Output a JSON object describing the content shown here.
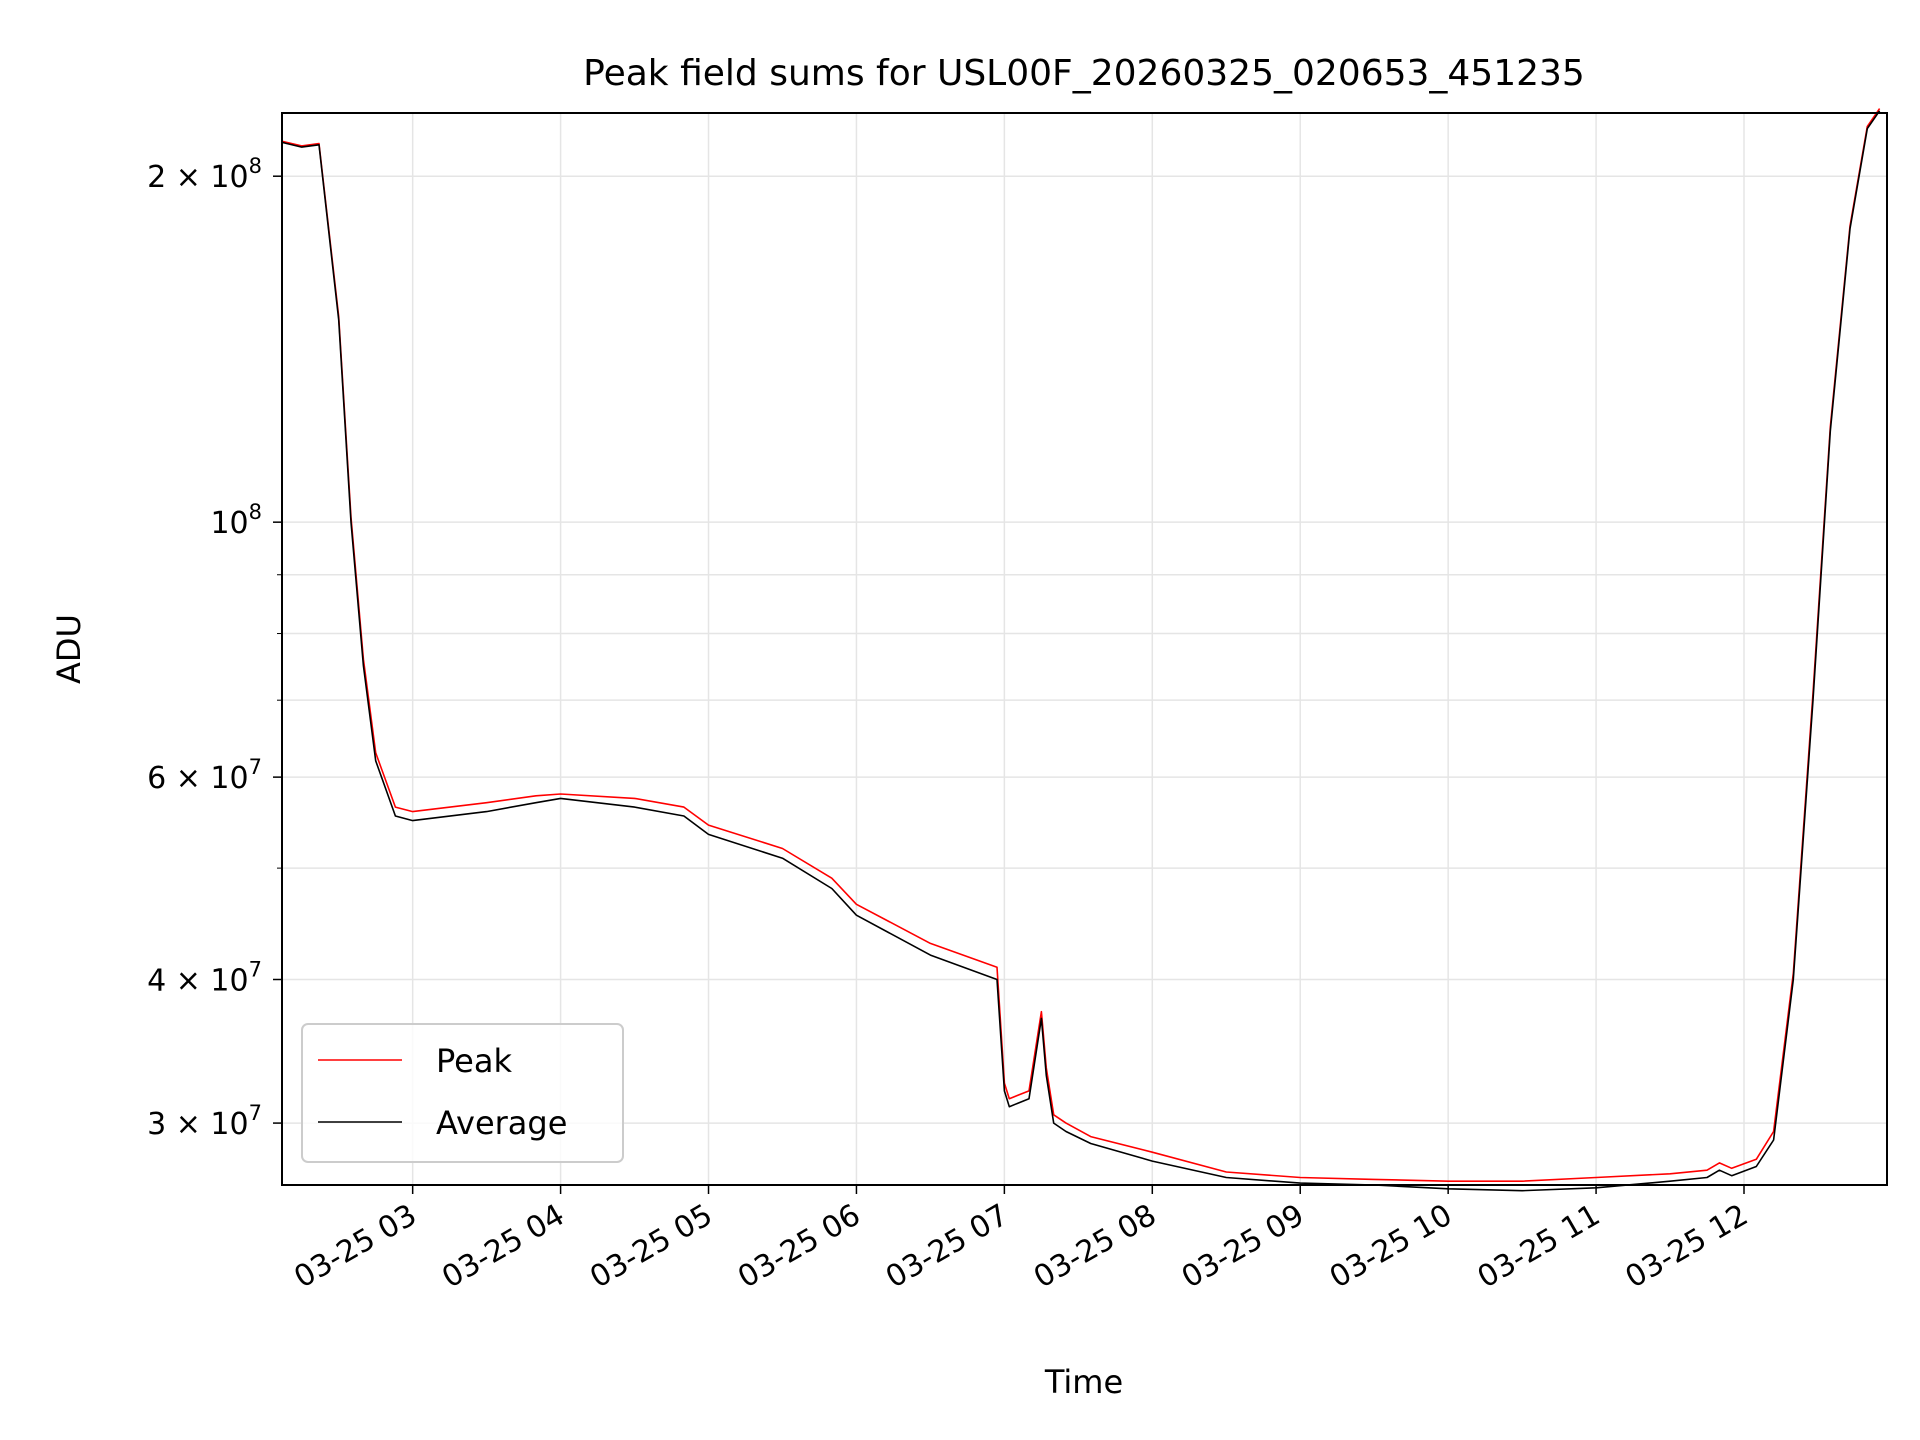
{
  "chart_data": {
    "type": "line",
    "title": "Peak field sums for USL00F_20260325_020653_451235",
    "xlabel": "Time",
    "ylabel": "ADU",
    "yscale": "log",
    "grid": true,
    "legend_placement": "lower-left",
    "xlim": [
      "2026-03-25 02:07",
      "2026-03-25 12:58"
    ],
    "ylim": [
      26500000,
      227000000
    ],
    "x_ticks": [
      "03-25 03",
      "03-25 04",
      "03-25 05",
      "03-25 06",
      "03-25 07",
      "03-25 08",
      "03-25 09",
      "03-25 10",
      "03-25 11",
      "03-25 12"
    ],
    "y_ticks": [
      {
        "value": 30000000,
        "label_base": "3 × 10",
        "label_exp": "7"
      },
      {
        "value": 40000000,
        "label_base": "4 × 10",
        "label_exp": "7"
      },
      {
        "value": 60000000,
        "label_base": "6 × 10",
        "label_exp": "7"
      },
      {
        "value": 100000000,
        "label_base": "10",
        "label_exp": "8"
      },
      {
        "value": 200000000,
        "label_base": "2 × 10",
        "label_exp": "8"
      }
    ],
    "series": [
      {
        "name": "Average",
        "color": "#000000",
        "x": [
          "2026-03-25 02:07",
          "2026-03-25 02:15",
          "2026-03-25 02:22",
          "2026-03-25 02:30",
          "2026-03-25 02:35",
          "2026-03-25 02:40",
          "2026-03-25 02:45",
          "2026-03-25 02:53",
          "2026-03-25 03:00",
          "2026-03-25 03:30",
          "2026-03-25 03:50",
          "2026-03-25 04:00",
          "2026-03-25 04:30",
          "2026-03-25 04:50",
          "2026-03-25 05:00",
          "2026-03-25 05:30",
          "2026-03-25 05:50",
          "2026-03-25 06:00",
          "2026-03-25 06:30",
          "2026-03-25 06:57",
          "2026-03-25 07:00",
          "2026-03-25 07:02",
          "2026-03-25 07:10",
          "2026-03-25 07:15",
          "2026-03-25 07:17",
          "2026-03-25 07:20",
          "2026-03-25 07:25",
          "2026-03-25 07:35",
          "2026-03-25 08:00",
          "2026-03-25 08:30",
          "2026-03-25 09:00",
          "2026-03-25 09:30",
          "2026-03-25 10:00",
          "2026-03-25 10:30",
          "2026-03-25 11:00",
          "2026-03-25 11:30",
          "2026-03-25 11:45",
          "2026-03-25 11:50",
          "2026-03-25 11:55",
          "2026-03-25 12:05",
          "2026-03-25 12:12",
          "2026-03-25 12:20",
          "2026-03-25 12:28",
          "2026-03-25 12:35",
          "2026-03-25 12:43",
          "2026-03-25 12:50",
          "2026-03-25 12:55"
        ],
        "values": [
          214000000,
          212000000,
          213000000,
          150000000,
          100000000,
          75000000,
          62000000,
          55500000,
          55000000,
          56000000,
          57000000,
          57500000,
          56500000,
          55500000,
          53500000,
          51000000,
          48000000,
          45500000,
          42000000,
          40000000,
          32000000,
          31000000,
          31500000,
          37000000,
          33000000,
          30000000,
          29500000,
          28800000,
          27800000,
          26900000,
          26600000,
          26500000,
          26300000,
          26200000,
          26350000,
          26700000,
          26900000,
          27300000,
          27000000,
          27500000,
          29000000,
          40000000,
          70000000,
          120000000,
          180000000,
          220000000,
          228000000
        ]
      },
      {
        "name": "Peak",
        "color": "#ff0000",
        "x": [
          "2026-03-25 02:07",
          "2026-03-25 02:15",
          "2026-03-25 02:22",
          "2026-03-25 02:30",
          "2026-03-25 02:35",
          "2026-03-25 02:40",
          "2026-03-25 02:45",
          "2026-03-25 02:53",
          "2026-03-25 03:00",
          "2026-03-25 03:30",
          "2026-03-25 03:50",
          "2026-03-25 04:00",
          "2026-03-25 04:30",
          "2026-03-25 04:50",
          "2026-03-25 05:00",
          "2026-03-25 05:30",
          "2026-03-25 05:50",
          "2026-03-25 06:00",
          "2026-03-25 06:30",
          "2026-03-25 06:57",
          "2026-03-25 07:00",
          "2026-03-25 07:02",
          "2026-03-25 07:10",
          "2026-03-25 07:15",
          "2026-03-25 07:17",
          "2026-03-25 07:20",
          "2026-03-25 07:25",
          "2026-03-25 07:35",
          "2026-03-25 08:00",
          "2026-03-25 08:30",
          "2026-03-25 09:00",
          "2026-03-25 09:30",
          "2026-03-25 10:00",
          "2026-03-25 10:30",
          "2026-03-25 11:00",
          "2026-03-25 11:30",
          "2026-03-25 11:45",
          "2026-03-25 11:50",
          "2026-03-25 11:55",
          "2026-03-25 12:05",
          "2026-03-25 12:12",
          "2026-03-25 12:20",
          "2026-03-25 12:28",
          "2026-03-25 12:35",
          "2026-03-25 12:43",
          "2026-03-25 12:50",
          "2026-03-25 12:55"
        ],
        "values": [
          214500000,
          212500000,
          213500000,
          151000000,
          101000000,
          76000000,
          63000000,
          56500000,
          56000000,
          57000000,
          57800000,
          58000000,
          57500000,
          56500000,
          54500000,
          52000000,
          49000000,
          46500000,
          43000000,
          41000000,
          32500000,
          31500000,
          32000000,
          37500000,
          33500000,
          30500000,
          30000000,
          29200000,
          28300000,
          27200000,
          26900000,
          26800000,
          26700000,
          26700000,
          26900000,
          27100000,
          27300000,
          27700000,
          27400000,
          27900000,
          29500000,
          40500000,
          71000000,
          121000000,
          181000000,
          221000000,
          229000000
        ]
      }
    ]
  }
}
